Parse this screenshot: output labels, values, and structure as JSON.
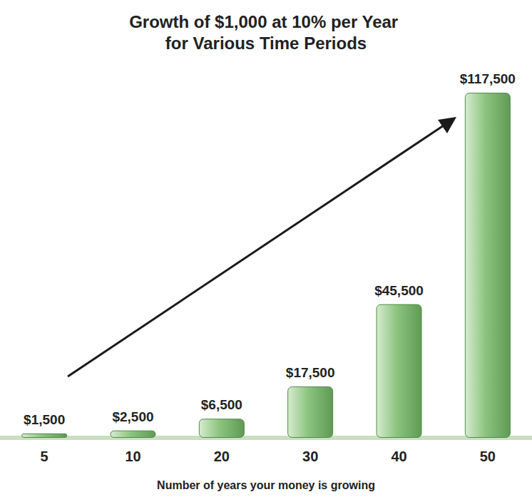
{
  "chart_data": {
    "type": "bar",
    "title": "Growth of $1,000 at 10% per Year for Various Time Periods",
    "x_label": "Number of years your money is growing",
    "categories": [
      "5",
      "10",
      "20",
      "30",
      "40",
      "50"
    ],
    "values": [
      1500,
      2500,
      6500,
      17500,
      45500,
      117500
    ],
    "value_labels": [
      "$1,500",
      "$2,500",
      "$6,500",
      "$17,500",
      "$45,500",
      "$117,500"
    ],
    "data_labels": true,
    "color": "#8cc47f",
    "ylim": [
      0,
      117500
    ],
    "yticks": [
      0,
      117500
    ],
    "grid": false,
    "tick_labels": "x"
  }
}
